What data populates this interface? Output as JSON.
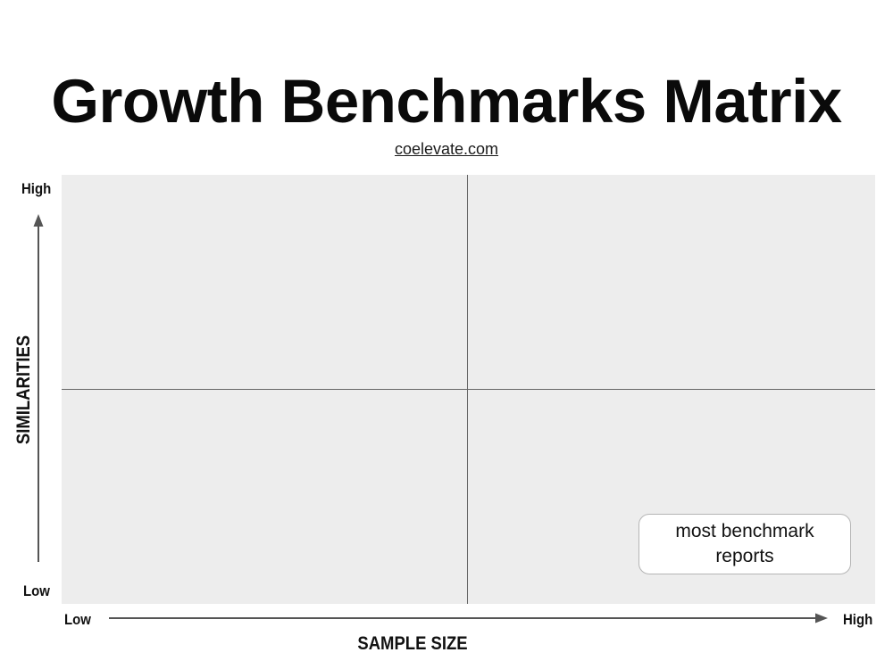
{
  "title": "Growth Benchmarks Matrix",
  "source_link": "coelevate.com",
  "y_axis": {
    "title": "SIMILARITIES",
    "high_label": "High",
    "low_label": "Low"
  },
  "x_axis": {
    "title": "SAMPLE SIZE",
    "low_label": "Low",
    "high_label": "High"
  },
  "callout": {
    "text": "most benchmark reports"
  },
  "colors": {
    "matrix_background": "#ededed",
    "divider": "#666666",
    "arrow": "#555555",
    "callout_border": "#b5b5b5"
  }
}
